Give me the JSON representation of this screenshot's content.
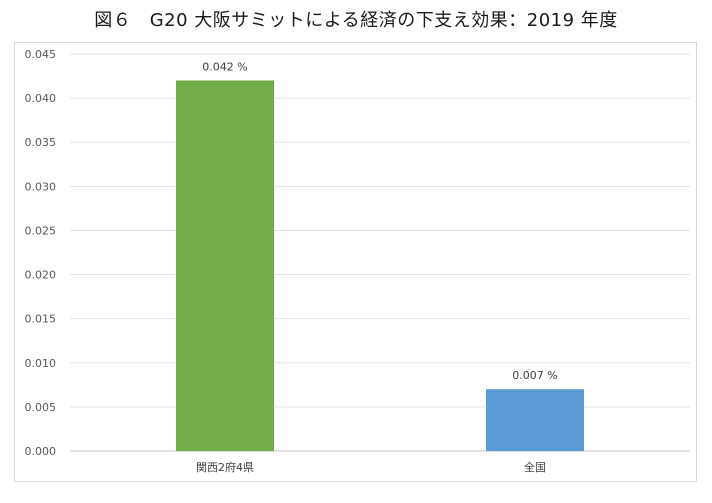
{
  "title": "図６　G20 大阪サミットによる経済の下支え効果：2019 年度",
  "chart_data": {
    "type": "bar",
    "title": "図６　G20 大阪サミットによる経済の下支え効果：2019 年度",
    "categories": [
      "関西2府4県",
      "全国"
    ],
    "values": [
      0.042,
      0.007
    ],
    "data_labels": [
      "0.042 %",
      "0.007 %"
    ],
    "colors": [
      "#70ad47",
      "#5b9bd5"
    ],
    "ylim": [
      0,
      0.045
    ],
    "yticks": [
      "0.000",
      "0.005",
      "0.010",
      "0.015",
      "0.020",
      "0.025",
      "0.030",
      "0.035",
      "0.040",
      "0.045"
    ],
    "xlabel": "",
    "ylabel": "",
    "grid": true,
    "legend": "none"
  }
}
